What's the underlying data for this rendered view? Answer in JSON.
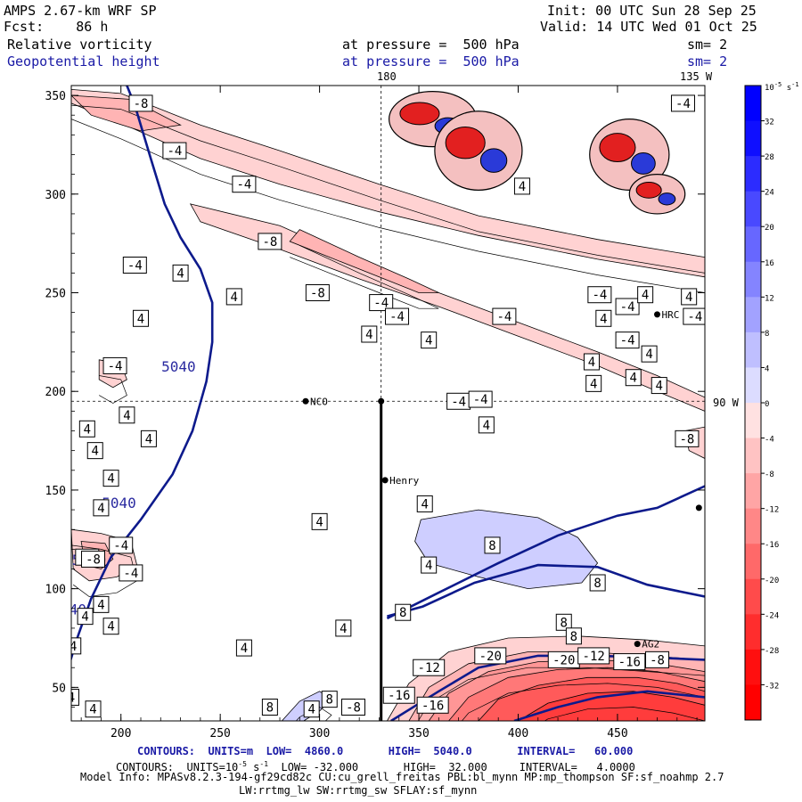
{
  "header": {
    "model": "AMPS 2.67-km WRF SP",
    "init": "Init: 00 UTC Sun 28 Sep 25",
    "fcst_label": "Fcst:",
    "fcst_value": "86 h",
    "valid": "Valid: 14 UTC Wed 01 Oct 25",
    "field1": "Relative vorticity",
    "field1_level": "at pressure =  500 hPa",
    "field1_sm": "sm= 2",
    "field2": "Geopotential height",
    "field2_level": "at pressure =  500 hPa",
    "field2_sm": "sm= 2",
    "lon_top_180": "180",
    "lon_top_135": "135 W",
    "lon_right_90": "90 W"
  },
  "stations": [
    {
      "name": "NCO",
      "x": 293,
      "y": 195
    },
    {
      "name": "Henry",
      "x": 333,
      "y": 155
    },
    {
      "name": "HRC",
      "x": 470,
      "y": 239
    },
    {
      "name": "AG2",
      "x": 460,
      "y": 72
    },
    {
      "name": "",
      "x": 491,
      "y": 141
    },
    {
      "name": "",
      "x": 331,
      "y": 195
    }
  ],
  "colorbar": {
    "unit_label": "10",
    "unit_exp": "-5",
    "unit_suffix": "s",
    "unit_suffix_exp": "-1",
    "levels": [
      -36,
      -32,
      -28,
      -24,
      -20,
      -16,
      -12,
      -8,
      -4,
      0,
      4,
      8,
      12,
      16,
      20,
      24,
      28,
      32,
      36
    ],
    "tick_labels": [
      "32",
      "28",
      "24",
      "20",
      "16",
      "12",
      "8",
      "4",
      "0",
      "-4",
      "-8",
      "-12",
      "-16",
      "-20",
      "-24",
      "-28",
      "-32"
    ]
  },
  "chart_data": {
    "type": "contour",
    "title": "Relative vorticity / Geopotential height at 500 hPa",
    "xlim": [
      175,
      494
    ],
    "ylim": [
      33,
      355
    ],
    "x_ticks": [
      200,
      250,
      300,
      350,
      400,
      450
    ],
    "y_ticks": [
      50,
      100,
      150,
      200,
      250,
      300,
      350
    ],
    "cross_lines": {
      "x": 331,
      "y": 195
    },
    "section_line": {
      "x": 331,
      "y_from": 195,
      "y_to": 33
    },
    "height_contours": [
      {
        "label": "5040",
        "points": [
          [
            203,
            355
          ],
          [
            207,
            345
          ],
          [
            215,
            318
          ],
          [
            222,
            295
          ],
          [
            230,
            278
          ],
          [
            240,
            262
          ],
          [
            246,
            245
          ],
          [
            246,
            225
          ],
          [
            243,
            205
          ],
          [
            236,
            180
          ],
          [
            226,
            158
          ],
          [
            210,
            135
          ],
          [
            195,
            116
          ],
          [
            185,
            95
          ],
          [
            178,
            75
          ],
          [
            172,
            55
          ],
          [
            167,
            33
          ]
        ]
      },
      {
        "label": "",
        "points": [
          [
            334,
            85
          ],
          [
            360,
            98
          ],
          [
            390,
            113
          ],
          [
            420,
            127
          ],
          [
            450,
            137
          ],
          [
            470,
            141
          ],
          [
            494,
            152
          ]
        ]
      },
      {
        "label": "",
        "points": [
          [
            334,
            86
          ],
          [
            352,
            91
          ],
          [
            378,
            103
          ],
          [
            410,
            112
          ],
          [
            440,
            111
          ],
          [
            465,
            102
          ],
          [
            494,
            96
          ]
        ]
      },
      {
        "label": "",
        "points": [
          [
            336,
            33
          ],
          [
            360,
            48
          ],
          [
            380,
            60
          ],
          [
            410,
            66
          ],
          [
            440,
            66
          ],
          [
            470,
            65
          ],
          [
            494,
            64
          ]
        ]
      },
      {
        "label": "",
        "points": [
          [
            398,
            33
          ],
          [
            420,
            40
          ],
          [
            440,
            45
          ],
          [
            465,
            48
          ],
          [
            494,
            45
          ]
        ]
      }
    ],
    "height_labels": [
      {
        "text": "5040",
        "x": 229,
        "y": 210
      },
      {
        "text": "5040",
        "x": 199,
        "y": 141
      },
      {
        "text": "5040",
        "x": 184,
        "y": 112
      },
      {
        "text": "5040",
        "x": 174,
        "y": 87
      }
    ],
    "vorticity_labels": [
      {
        "text": "-8",
        "x": 210,
        "y": 346
      },
      {
        "text": "-4",
        "x": 227,
        "y": 322
      },
      {
        "text": "-8",
        "x": 275,
        "y": 276
      },
      {
        "text": "-4",
        "x": 207,
        "y": 264
      },
      {
        "text": "4",
        "x": 230,
        "y": 260
      },
      {
        "text": "-8",
        "x": 299,
        "y": 250
      },
      {
        "text": "4",
        "x": 257,
        "y": 248
      },
      {
        "text": "-4",
        "x": 331,
        "y": 245
      },
      {
        "text": "4",
        "x": 210,
        "y": 237
      },
      {
        "text": "-4",
        "x": 339,
        "y": 238
      },
      {
        "text": "4",
        "x": 325,
        "y": 229
      },
      {
        "text": "4",
        "x": 355,
        "y": 226
      },
      {
        "text": "-4",
        "x": 393,
        "y": 238
      },
      {
        "text": "-4",
        "x": 441,
        "y": 249
      },
      {
        "text": "-4",
        "x": 455,
        "y": 243
      },
      {
        "text": "4",
        "x": 464,
        "y": 249
      },
      {
        "text": "4",
        "x": 486,
        "y": 248
      },
      {
        "text": "4",
        "x": 443,
        "y": 237
      },
      {
        "text": "-4",
        "x": 489,
        "y": 238
      },
      {
        "text": "4",
        "x": 466,
        "y": 219
      },
      {
        "text": "-4",
        "x": 455,
        "y": 226
      },
      {
        "text": "-4",
        "x": 197,
        "y": 213
      },
      {
        "text": "4",
        "x": 437,
        "y": 215
      },
      {
        "text": "4",
        "x": 458,
        "y": 207
      },
      {
        "text": "4",
        "x": 438,
        "y": 204
      },
      {
        "text": "4",
        "x": 471,
        "y": 203
      },
      {
        "text": "-4",
        "x": 370,
        "y": 195
      },
      {
        "text": "-4",
        "x": 381,
        "y": 196
      },
      {
        "text": "4",
        "x": 203,
        "y": 188
      },
      {
        "text": "4",
        "x": 214,
        "y": 176
      },
      {
        "text": "4",
        "x": 183,
        "y": 181
      },
      {
        "text": "4",
        "x": 384,
        "y": 183
      },
      {
        "text": "-8",
        "x": 485,
        "y": 176
      },
      {
        "text": "4",
        "x": 187,
        "y": 170
      },
      {
        "text": "4",
        "x": 195,
        "y": 156
      },
      {
        "text": "4",
        "x": 353,
        "y": 143
      },
      {
        "text": "4",
        "x": 190,
        "y": 141
      },
      {
        "text": "4",
        "x": 300,
        "y": 134
      },
      {
        "text": "-4",
        "x": 200,
        "y": 122
      },
      {
        "text": "8",
        "x": 387,
        "y": 122
      },
      {
        "text": "-4",
        "x": 183,
        "y": 116
      },
      {
        "text": "-8",
        "x": 186,
        "y": 115
      },
      {
        "text": "4",
        "x": 355,
        "y": 112
      },
      {
        "text": "-4",
        "x": 205,
        "y": 108
      },
      {
        "text": "8",
        "x": 440,
        "y": 103
      },
      {
        "text": "4",
        "x": 190,
        "y": 92
      },
      {
        "text": "4",
        "x": 182,
        "y": 86
      },
      {
        "text": "8",
        "x": 342,
        "y": 88
      },
      {
        "text": "4",
        "x": 195,
        "y": 81
      },
      {
        "text": "4",
        "x": 312,
        "y": 80
      },
      {
        "text": "8",
        "x": 423,
        "y": 83
      },
      {
        "text": "4",
        "x": 262,
        "y": 70
      },
      {
        "text": "8",
        "x": 428,
        "y": 76
      },
      {
        "text": "-20",
        "x": 386,
        "y": 66
      },
      {
        "text": "-20",
        "x": 423,
        "y": 64
      },
      {
        "text": "-12",
        "x": 438,
        "y": 66
      },
      {
        "text": "-16",
        "x": 456,
        "y": 63
      },
      {
        "text": "-8",
        "x": 470,
        "y": 64
      },
      {
        "text": "-12",
        "x": 355,
        "y": 60
      },
      {
        "text": "4",
        "x": 176,
        "y": 71
      },
      {
        "text": "-16",
        "x": 340,
        "y": 46
      },
      {
        "text": "-16",
        "x": 357,
        "y": 41
      },
      {
        "text": "8",
        "x": 305,
        "y": 44
      },
      {
        "text": "4",
        "x": 296,
        "y": 39
      },
      {
        "text": "-8",
        "x": 317,
        "y": 40
      },
      {
        "text": "8",
        "x": 275,
        "y": 40
      },
      {
        "text": "4",
        "x": 175,
        "y": 45
      },
      {
        "text": "4",
        "x": 186,
        "y": 39
      },
      {
        "text": "-4",
        "x": 483,
        "y": 346
      },
      {
        "text": "4",
        "x": 402,
        "y": 304
      },
      {
        "text": "-4",
        "x": 262,
        "y": 305
      }
    ],
    "shaded_regions": [
      {
        "value": -4,
        "points": [
          [
            175,
            353
          ],
          [
            200,
            351
          ],
          [
            240,
            335
          ],
          [
            280,
            322
          ],
          [
            330,
            305
          ],
          [
            380,
            289
          ],
          [
            440,
            277
          ],
          [
            494,
            268
          ],
          [
            494,
            258
          ],
          [
            440,
            267
          ],
          [
            380,
            279
          ],
          [
            330,
            291
          ],
          [
            280,
            305
          ],
          [
            240,
            318
          ],
          [
            200,
            336
          ],
          [
            175,
            346
          ]
        ]
      },
      {
        "value": -4,
        "points": [
          [
            235,
            295
          ],
          [
            280,
            284
          ],
          [
            320,
            266
          ],
          [
            360,
            250
          ],
          [
            400,
            235
          ],
          [
            440,
            220
          ],
          [
            470,
            208
          ],
          [
            494,
            197
          ],
          [
            494,
            190
          ],
          [
            470,
            200
          ],
          [
            440,
            213
          ],
          [
            400,
            228
          ],
          [
            360,
            243
          ],
          [
            320,
            257
          ],
          [
            280,
            272
          ],
          [
            240,
            286
          ]
        ]
      },
      {
        "value": -8,
        "points": [
          [
            290,
            282
          ],
          [
            320,
            268
          ],
          [
            345,
            257
          ],
          [
            360,
            250
          ],
          [
            350,
            250
          ],
          [
            330,
            258
          ],
          [
            305,
            268
          ],
          [
            285,
            276
          ]
        ]
      },
      {
        "value": -8,
        "points": [
          [
            175,
            350
          ],
          [
            205,
            348
          ],
          [
            230,
            335
          ],
          [
            210,
            332
          ],
          [
            185,
            340
          ]
        ]
      },
      {
        "value": -4,
        "points": [
          [
            175,
            130
          ],
          [
            190,
            128
          ],
          [
            205,
            124
          ],
          [
            208,
            112
          ],
          [
            198,
            106
          ],
          [
            184,
            104
          ],
          [
            176,
            110
          ]
        ]
      },
      {
        "value": -8,
        "points": [
          [
            180,
            124
          ],
          [
            192,
            123
          ],
          [
            196,
            115
          ],
          [
            190,
            110
          ],
          [
            182,
            112
          ]
        ]
      },
      {
        "value": -4,
        "points": [
          [
            189,
            216
          ],
          [
            200,
            214
          ],
          [
            203,
            206
          ],
          [
            196,
            202
          ],
          [
            189,
            206
          ]
        ]
      },
      {
        "value": 4,
        "points": [
          [
            351,
            135
          ],
          [
            380,
            140
          ],
          [
            410,
            136
          ],
          [
            430,
            126
          ],
          [
            440,
            113
          ],
          [
            432,
            103
          ],
          [
            405,
            100
          ],
          [
            380,
            106
          ],
          [
            355,
            113
          ],
          [
            348,
            124
          ]
        ]
      },
      {
        "value": 4,
        "points": [
          [
            281,
            33
          ],
          [
            290,
            43
          ],
          [
            300,
            48
          ],
          [
            306,
            44
          ],
          [
            300,
            38
          ],
          [
            292,
            33
          ]
        ]
      },
      {
        "value": -4,
        "points": [
          [
            334,
            33
          ],
          [
            345,
            52
          ],
          [
            365,
            68
          ],
          [
            395,
            75
          ],
          [
            430,
            76
          ],
          [
            465,
            74
          ],
          [
            494,
            71
          ],
          [
            494,
            33
          ]
        ]
      },
      {
        "value": -8,
        "points": [
          [
            345,
            33
          ],
          [
            355,
            50
          ],
          [
            375,
            62
          ],
          [
            405,
            68
          ],
          [
            435,
            68
          ],
          [
            465,
            66
          ],
          [
            494,
            64
          ],
          [
            494,
            33
          ]
        ]
      },
      {
        "value": -12,
        "points": [
          [
            355,
            33
          ],
          [
            365,
            47
          ],
          [
            385,
            58
          ],
          [
            410,
            63
          ],
          [
            440,
            64
          ],
          [
            470,
            62
          ],
          [
            494,
            58
          ],
          [
            494,
            33
          ]
        ]
      },
      {
        "value": -16,
        "points": [
          [
            365,
            33
          ],
          [
            375,
            45
          ],
          [
            395,
            55
          ],
          [
            420,
            59
          ],
          [
            445,
            60
          ],
          [
            470,
            58
          ],
          [
            494,
            53
          ],
          [
            494,
            33
          ]
        ]
      },
      {
        "value": -20,
        "points": [
          [
            380,
            33
          ],
          [
            390,
            44
          ],
          [
            410,
            51
          ],
          [
            435,
            55
          ],
          [
            460,
            55
          ],
          [
            480,
            52
          ],
          [
            494,
            48
          ],
          [
            494,
            33
          ]
        ]
      },
      {
        "value": -24,
        "points": [
          [
            400,
            33
          ],
          [
            415,
            42
          ],
          [
            435,
            47
          ],
          [
            458,
            48
          ],
          [
            478,
            45
          ],
          [
            494,
            41
          ],
          [
            494,
            33
          ]
        ]
      },
      {
        "value": -4,
        "points": [
          [
            484,
            180
          ],
          [
            494,
            182
          ],
          [
            494,
            166
          ],
          [
            486,
            170
          ]
        ]
      }
    ],
    "storm_clusters": [
      {
        "x": 357,
        "y": 338,
        "rx": 22,
        "ry": 14
      },
      {
        "x": 380,
        "y": 322,
        "rx": 22,
        "ry": 20
      },
      {
        "x": 456,
        "y": 320,
        "rx": 20,
        "ry": 18
      },
      {
        "x": 470,
        "y": 300,
        "rx": 14,
        "ry": 10
      }
    ]
  },
  "footer": {
    "line1_a": "CONTOURS:  UNITS=m  LOW=  4860.0",
    "line1_b": "HIGH=  5040.0",
    "line1_c": "INTERVAL=   60.000",
    "line2_a": "CONTOURS:  UNITS=10",
    "line2_exp1": "-5",
    "line2_b": " s",
    "line2_exp2": "-1",
    "line2_c": "  LOW= -32.000",
    "line2_d": "HIGH=  32.000",
    "line2_e": "INTERVAL=   4.0000",
    "line3": "Model Info: MPASv8.2.3-194-gf29cd82c CU:cu_grell_freitas PBL:bl_mynn MP:mp_thompson SF:sf_noahmp 2.7",
    "line4": "LW:rrtmg_lw SW:rrtmg_sw SFLAY:sf_mynn"
  },
  "colors": {
    "height_contour": "#0d1a8c",
    "text_blue": "#1a1aa6",
    "red_max": "#ff0000",
    "blue_max": "#0000ff"
  }
}
